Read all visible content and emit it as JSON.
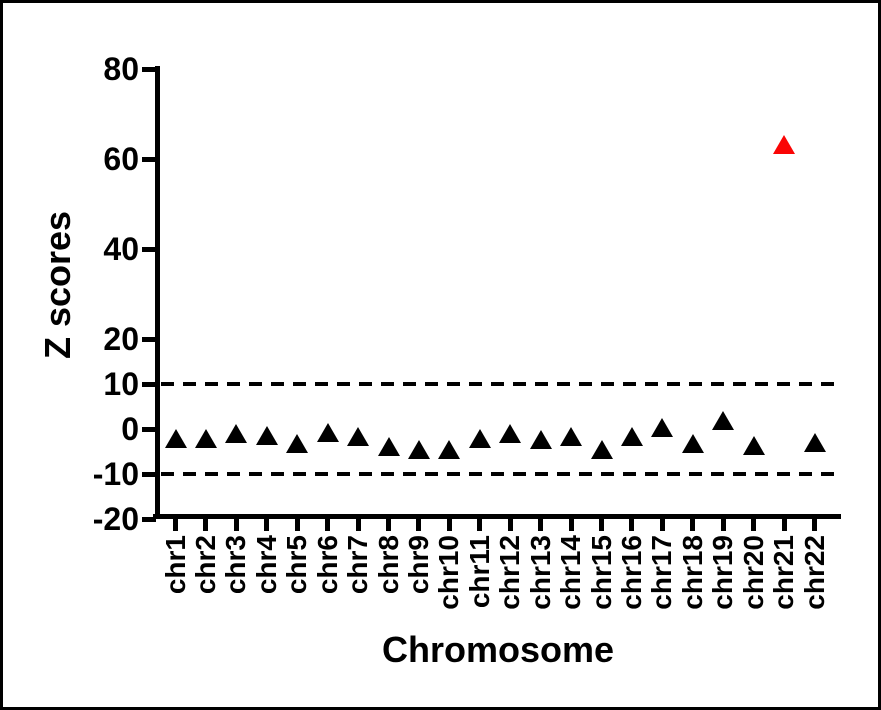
{
  "chart_data": {
    "type": "scatter",
    "marker_shape": "filled-triangle-up",
    "title": "",
    "xlabel": "Chromosome",
    "ylabel": "Z scores",
    "categories": [
      "chr1",
      "chr2",
      "chr3",
      "chr4",
      "chr5",
      "chr6",
      "chr7",
      "chr8",
      "chr9",
      "chr10",
      "chr11",
      "chr12",
      "chr13",
      "chr14",
      "chr15",
      "chr16",
      "chr17",
      "chr18",
      "chr19",
      "chr20",
      "chr21",
      "chr22"
    ],
    "values": [
      -2.0,
      -2.2,
      -1.0,
      -1.5,
      -3.3,
      -0.7,
      -1.6,
      -3.8,
      -4.6,
      -4.5,
      -2.0,
      -0.9,
      -2.4,
      -1.6,
      -4.6,
      -1.6,
      0.4,
      -3.3,
      1.9,
      -3.7,
      63.3,
      -2.9
    ],
    "marker_color": "#000000",
    "highlight": {
      "category": "chr21",
      "value": 63.3,
      "color": "#FA0505"
    },
    "ylim": [
      -20,
      80
    ],
    "yticks": [
      80,
      60,
      40,
      20,
      10,
      0,
      -10,
      -20
    ],
    "threshold_lines": [
      10,
      -10
    ],
    "threshold_style": "dashed",
    "grid": "off",
    "legend": "none",
    "axis_color": "#000000",
    "background_color": "#ffffff"
  }
}
